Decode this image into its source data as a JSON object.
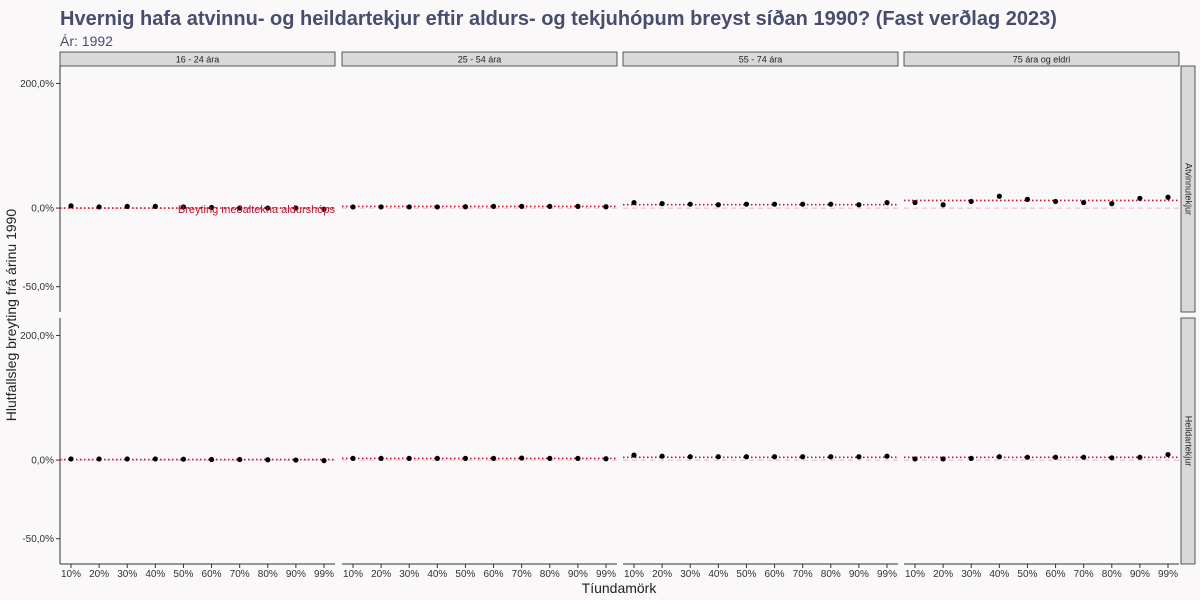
{
  "header": {
    "title": "Hvernig hafa atvinnu- og heildartekjur eftir aldurs- og tekjuhópum breyst síðan 1990? (Fast verðlag 2023)",
    "subtitle": "Ár: 1992"
  },
  "chart_data": {
    "type": "scatter",
    "ylabel": "Hlutfallsleg breyting frá árinu 1990",
    "xlabel": "Tíundamörk",
    "y_scale": "log",
    "ylim": [
      -0.6,
      2.5
    ],
    "y_ticks": [
      -0.5,
      0,
      2.0
    ],
    "y_tick_labels": [
      "-50,0%",
      "0,0%",
      "200,0%"
    ],
    "categories": [
      "10%",
      "20%",
      "30%",
      "40%",
      "50%",
      "60%",
      "70%",
      "80%",
      "90%",
      "99%"
    ],
    "columns": [
      "16 - 24 ára",
      "25 - 54 ára",
      "55 - 74 ára",
      "75 ára og eldri"
    ],
    "rows": [
      "Atvinnutekjur",
      "Heildartekjur"
    ],
    "annotation": "Breyting meðaltekna aldurshóps",
    "colors": {
      "points": "#000000",
      "mean_line": "#c8102e",
      "zero_line": "#e8b7c0"
    },
    "panels": [
      {
        "row": "Atvinnutekjur",
        "column": "16 - 24 ára",
        "mean": 0.0,
        "values": [
          0.02,
          0.01,
          0.015,
          0.015,
          0.01,
          0.005,
          0.0,
          0.0,
          0.0,
          -0.01
        ]
      },
      {
        "row": "Atvinnutekjur",
        "column": "25 - 54 ára",
        "mean": 0.015,
        "values": [
          0.01,
          0.01,
          0.01,
          0.01,
          0.012,
          0.015,
          0.015,
          0.015,
          0.015,
          0.012
        ]
      },
      {
        "row": "Atvinnutekjur",
        "column": "55 - 74 ára",
        "mean": 0.03,
        "values": [
          0.05,
          0.04,
          0.035,
          0.03,
          0.035,
          0.035,
          0.035,
          0.035,
          0.03,
          0.05
        ]
      },
      {
        "row": "Atvinnutekjur",
        "column": "75 ára og eldri",
        "mean": 0.07,
        "values": [
          0.05,
          0.03,
          0.06,
          0.11,
          0.08,
          0.06,
          0.05,
          0.04,
          0.09,
          0.1
        ]
      },
      {
        "row": "Heildartekjur",
        "column": "16 - 24 ára",
        "mean": 0.005,
        "values": [
          0.01,
          0.01,
          0.01,
          0.01,
          0.008,
          0.005,
          0.005,
          0.003,
          0.0,
          -0.005
        ]
      },
      {
        "row": "Heildartekjur",
        "column": "25 - 54 ára",
        "mean": 0.015,
        "values": [
          0.015,
          0.015,
          0.015,
          0.015,
          0.015,
          0.015,
          0.018,
          0.015,
          0.015,
          0.012
        ]
      },
      {
        "row": "Heildartekjur",
        "column": "55 - 74 ára",
        "mean": 0.025,
        "values": [
          0.045,
          0.035,
          0.03,
          0.03,
          0.03,
          0.03,
          0.03,
          0.03,
          0.03,
          0.035
        ]
      },
      {
        "row": "Heildartekjur",
        "column": "75 ára og eldri",
        "mean": 0.025,
        "values": [
          0.01,
          0.01,
          0.015,
          0.03,
          0.025,
          0.025,
          0.025,
          0.02,
          0.025,
          0.05
        ]
      }
    ]
  }
}
